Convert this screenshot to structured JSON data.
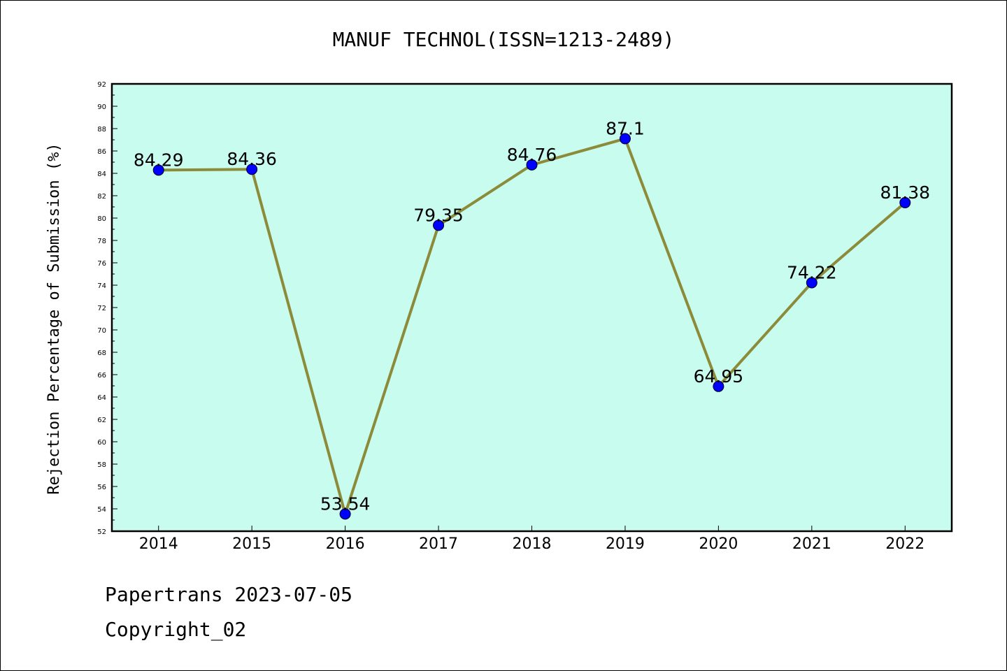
{
  "chart_data": {
    "type": "line",
    "title": "MANUF TECHNOL(ISSN=1213-2489)",
    "ylabel": "Rejection Percentage of Submission (%)",
    "xlabel": "",
    "categories": [
      "2014",
      "2015",
      "2016",
      "2017",
      "2018",
      "2019",
      "2020",
      "2021",
      "2022"
    ],
    "values": [
      84.29,
      84.36,
      53.54,
      79.35,
      84.76,
      87.1,
      64.95,
      74.22,
      81.38
    ],
    "data_labels": [
      "84.29",
      "84.36",
      "53.54",
      "79.35",
      "84.76",
      "87.1",
      "64.95",
      "74.22",
      "81.38"
    ],
    "ylim": [
      52,
      92
    ],
    "ytick_step": 2,
    "grid": false,
    "colors": {
      "plot_background": "#c8fcee",
      "line": "#8b8b3a",
      "marker": "#0000ff"
    }
  },
  "footer": {
    "line1": "Papertrans 2023-07-05",
    "line2": "Copyright_02"
  }
}
